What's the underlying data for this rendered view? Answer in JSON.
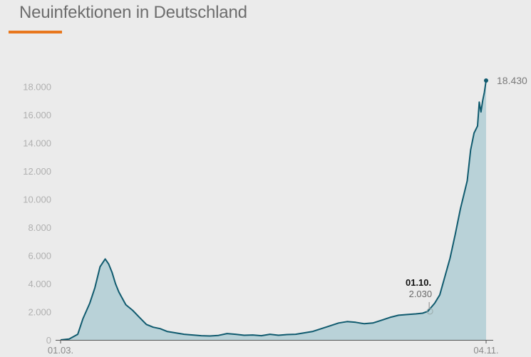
{
  "header": {
    "title": "Neuinfektionen in Deutschland"
  },
  "colors": {
    "line": "#0f5a6e",
    "area": "#b9d2d8",
    "accent": "#e8771d"
  },
  "chart_data": {
    "type": "area",
    "title": "Neuinfektionen in Deutschland",
    "xlabel": "",
    "ylabel": "",
    "ylim": [
      0,
      18430
    ],
    "grid": false,
    "y_ticks": [
      "18.000",
      "16.000",
      "14.000",
      "12.000",
      "10.000",
      "8.000",
      "6.000",
      "4.000",
      "2.000",
      "0"
    ],
    "y_tick_values": [
      18000,
      16000,
      14000,
      12000,
      10000,
      8000,
      6000,
      4000,
      2000,
      0
    ],
    "x_start_label": "01.03.",
    "x_end_label": "04.11.",
    "end_value_label": "18.430",
    "annotation": {
      "date": "01.10.",
      "value_label": "2.030",
      "value": 2030
    },
    "series": [
      {
        "x": [
          "01.03.",
          "06.03.",
          "11.03.",
          "14.03.",
          "18.03.",
          "21.03.",
          "24.03.",
          "27.03.",
          "29.03.",
          "31.03.",
          "02.04.",
          "04.04.",
          "08.04.",
          "12.04.",
          "16.04.",
          "20.04.",
          "24.04.",
          "28.04.",
          "02.05.",
          "07.05.",
          "12.05.",
          "17.05.",
          "22.05.",
          "27.05.",
          "01.06.",
          "06.06.",
          "11.06.",
          "16.06.",
          "21.06.",
          "26.06.",
          "01.07.",
          "06.07.",
          "11.07.",
          "16.07.",
          "21.07.",
          "26.07.",
          "31.07.",
          "05.08.",
          "10.08.",
          "15.08.",
          "20.08.",
          "25.08.",
          "30.08.",
          "04.09.",
          "09.09.",
          "14.09.",
          "19.09.",
          "24.09.",
          "28.09.",
          "01.10.",
          "05.10.",
          "08.10.",
          "11.10.",
          "14.10.",
          "17.10.",
          "20.10.",
          "22.10.",
          "24.10.",
          "26.10.",
          "28.10.",
          "30.10.",
          "31.10.",
          "01.11.",
          "02.11.",
          "03.11.",
          "04.11."
        ],
        "values": [
          0,
          60,
          400,
          1500,
          2600,
          3700,
          5200,
          5750,
          5400,
          4800,
          4000,
          3400,
          2500,
          2100,
          1600,
          1100,
          900,
          800,
          600,
          500,
          400,
          350,
          300,
          280,
          320,
          450,
          400,
          330,
          350,
          300,
          400,
          330,
          380,
          400,
          500,
          600,
          800,
          1000,
          1200,
          1300,
          1250,
          1150,
          1200,
          1400,
          1600,
          1750,
          1800,
          1850,
          1900,
          2030,
          2600,
          3200,
          4500,
          5800,
          7500,
          9300,
          10300,
          11300,
          13500,
          14700,
          15200,
          16900,
          16200,
          17000,
          17600,
          18430
        ]
      }
    ]
  }
}
